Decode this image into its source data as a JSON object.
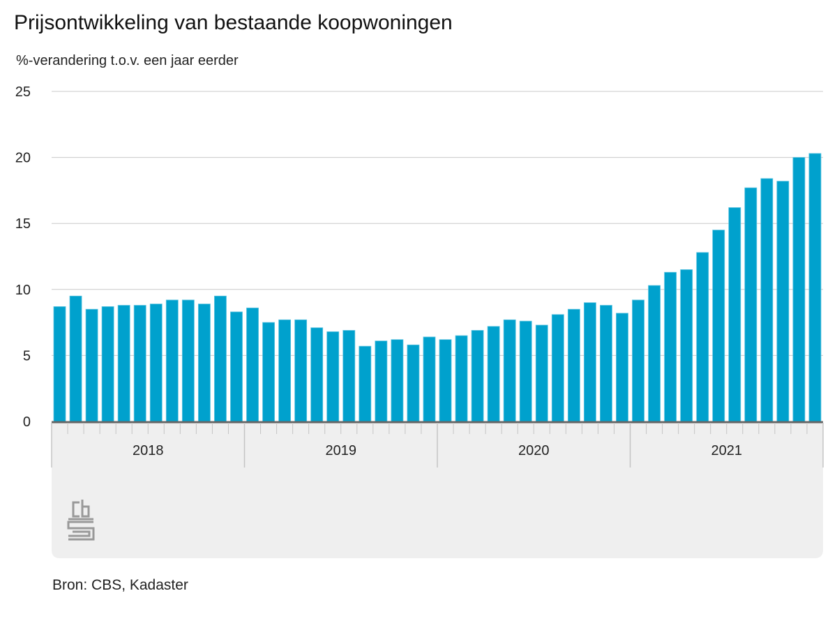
{
  "chart_data": {
    "type": "bar",
    "title": "Prijsontwikkeling van bestaande koopwoningen",
    "ylabel": "%-verandering t.o.v. een jaar eerder",
    "source": "Bron: CBS, Kadaster",
    "ylim": [
      0,
      25
    ],
    "yticks": [
      "0",
      "5",
      "10",
      "15",
      "20",
      "25"
    ],
    "grid": true,
    "bar_color": "#00a1cd",
    "years": [
      "2018",
      "2019",
      "2020",
      "2021"
    ],
    "months_per_year": 12,
    "values": [
      8.7,
      9.5,
      8.5,
      8.7,
      8.8,
      8.8,
      8.9,
      9.2,
      9.2,
      8.9,
      9.5,
      8.3,
      8.6,
      7.5,
      7.7,
      7.7,
      7.1,
      6.8,
      6.9,
      5.7,
      6.1,
      6.2,
      5.8,
      6.4,
      6.2,
      6.5,
      6.9,
      7.2,
      7.7,
      7.6,
      7.3,
      8.1,
      8.5,
      9.0,
      8.8,
      8.2,
      9.2,
      10.3,
      11.3,
      11.5,
      12.8,
      14.5,
      16.2,
      17.7,
      18.4,
      18.2,
      20.0,
      20.3
    ]
  },
  "logo": "cbs-logo"
}
